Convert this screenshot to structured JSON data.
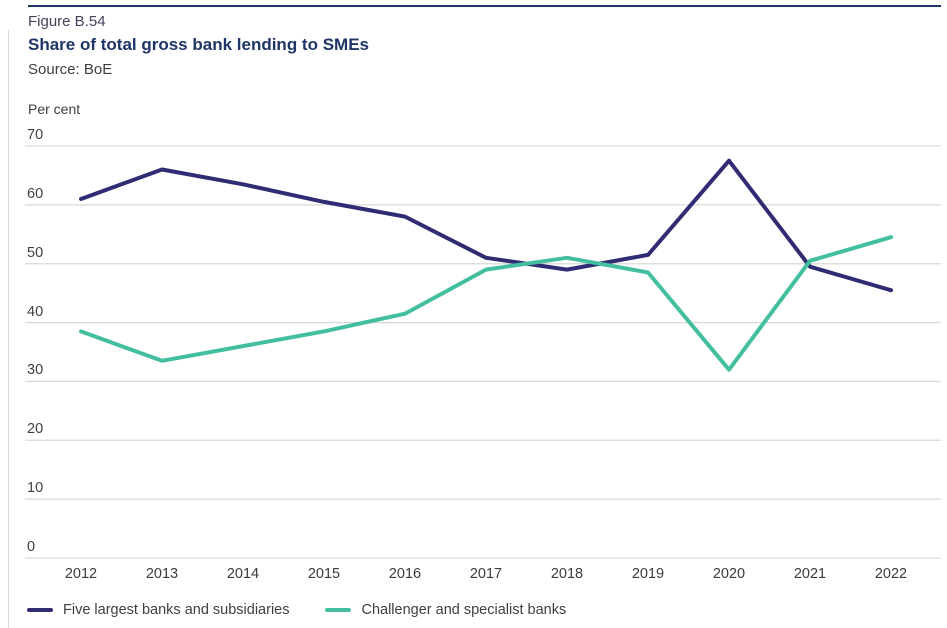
{
  "page": {
    "figure_label": "Figure B.54",
    "title": "Share of total gross bank lending to SMEs",
    "source": "Source: BoE",
    "unit_label": "Per cent"
  },
  "colors": {
    "series1": "#302c74",
    "series2": "#43bf9f",
    "grid": "#d9d9d9",
    "top_rule": "#1e3566"
  },
  "chart_data": {
    "type": "line",
    "title": "Share of total gross bank lending to SMEs",
    "subtitle": "Figure B.54",
    "source": "Source: BoE",
    "ylabel": "Per cent",
    "xlabel": "",
    "categories": [
      "2012",
      "2013",
      "2014",
      "2015",
      "2016",
      "2017",
      "2018",
      "2019",
      "2020",
      "2021",
      "2022"
    ],
    "y_ticks": [
      70,
      60,
      50,
      40,
      30,
      20,
      10,
      0
    ],
    "ylim": [
      0,
      70
    ],
    "grid": "horizontal-only",
    "legend_position": "bottom-left",
    "series": [
      {
        "name": "Five largest banks and subsidiaries",
        "color": "#302c74",
        "values": [
          61,
          66,
          63.5,
          60.5,
          58,
          51,
          49,
          51.5,
          67.5,
          49.5,
          45.5
        ]
      },
      {
        "name": "Challenger and specialist banks",
        "color": "#43bf9f",
        "values": [
          38.5,
          33.5,
          36,
          38.5,
          41.5,
          49,
          51,
          48.5,
          32,
          50.5,
          54.5
        ]
      }
    ]
  }
}
